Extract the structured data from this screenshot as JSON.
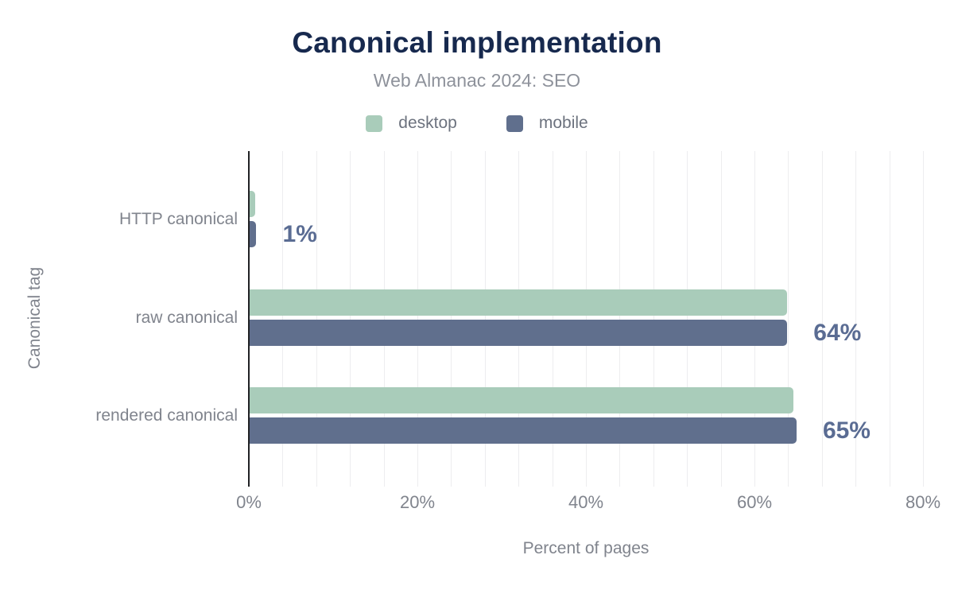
{
  "chart_data": {
    "type": "bar",
    "orientation": "horizontal",
    "title": "Canonical implementation",
    "subtitle": "Web Almanac 2024: SEO",
    "xlabel": "Percent of pages",
    "ylabel": "Canonical tag",
    "xlim": [
      0,
      80
    ],
    "grid_step": 4,
    "grid": "vertical minor gridlines every 4%, no horizontal gridlines",
    "legend_position": "top-center",
    "x_ticks": [
      {
        "value": 0,
        "label": "0%"
      },
      {
        "value": 20,
        "label": "20%"
      },
      {
        "value": 40,
        "label": "40%"
      },
      {
        "value": 60,
        "label": "60%"
      },
      {
        "value": 80,
        "label": "80%"
      }
    ],
    "categories": [
      "HTTP canonical",
      "raw canonical",
      "rendered canonical"
    ],
    "series": [
      {
        "name": "desktop",
        "color": "#a9ccba",
        "values": [
          0.7,
          63.8,
          64.5
        ],
        "rounded_labels": [
          "1%",
          "64%",
          "65%"
        ]
      },
      {
        "name": "mobile",
        "color": "#606f8d",
        "values": [
          0.8,
          63.8,
          64.9
        ],
        "rounded_labels": [
          "1%",
          "64%",
          "65%"
        ]
      }
    ],
    "value_labels": [
      "1%",
      "64%",
      "65%"
    ]
  },
  "colors": {
    "title": "#17294e",
    "subtitle": "#8e929b",
    "legend_text": "#6c727e",
    "desktop": "#a9ccba",
    "mobile": "#606f8d",
    "value_label": "#5a6c93",
    "gridline": "#ededef",
    "axis_line": "#202124",
    "axis_text": "#80848d",
    "background": "#ffffff"
  }
}
